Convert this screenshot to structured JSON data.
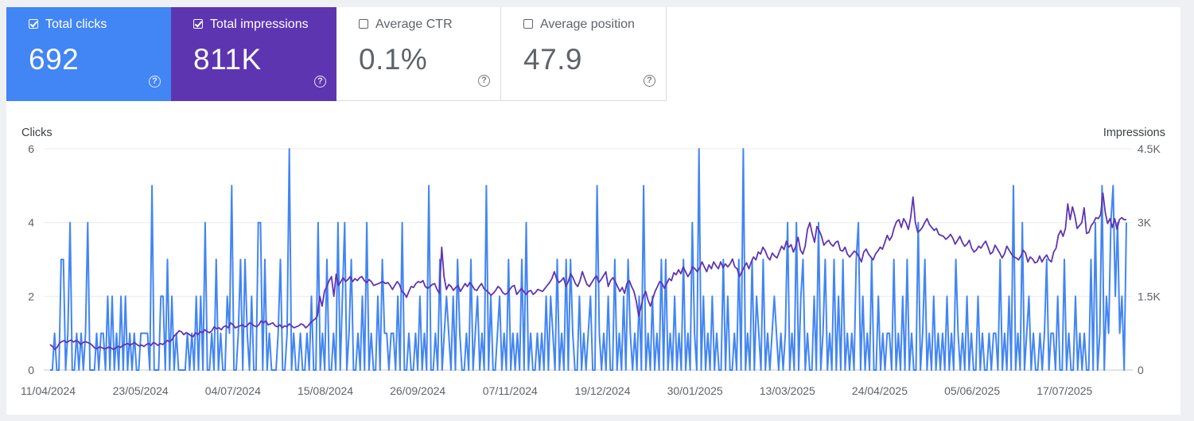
{
  "metrics": {
    "clicks": {
      "label": "Total clicks",
      "value": "692",
      "help_icon": "help-icon",
      "color": "#4285f4",
      "checked": true
    },
    "impressions": {
      "label": "Total impressions",
      "value": "811K",
      "help_icon": "help-icon",
      "color": "#5e35b1",
      "checked": true
    },
    "ctr": {
      "label": "Average CTR",
      "value": "0.1%",
      "help_icon": "help-icon",
      "checked": false
    },
    "position": {
      "label": "Average position",
      "value": "47.9",
      "help_icon": "help-icon",
      "checked": false
    }
  },
  "chart_data": {
    "type": "line",
    "ylabel_left": "Clicks",
    "ylabel_right": "Impressions",
    "yticks_left": [
      "0",
      "2",
      "4",
      "6"
    ],
    "yticks_right": [
      "0",
      "1.5K",
      "3K",
      "4.5K"
    ],
    "ylim_left": [
      0,
      6
    ],
    "ylim_right": [
      0,
      4500
    ],
    "grid": true,
    "x_tick_labels": [
      "11/04/2024",
      "23/05/2024",
      "04/07/2024",
      "15/08/2024",
      "26/09/2024",
      "07/11/2024",
      "19/12/2024",
      "30/01/2025",
      "13/03/2025",
      "24/04/2025",
      "05/06/2025",
      "17/07/2025"
    ],
    "x_range": [
      "09/04/2024",
      "17/08/2025"
    ],
    "series": [
      {
        "name": "Clicks",
        "axis": "left",
        "color": "#4285f4",
        "values": [
          0,
          0,
          1,
          0,
          0,
          3,
          3,
          0,
          1,
          4,
          0,
          0,
          1,
          0,
          1,
          0,
          1,
          4,
          0,
          0,
          0,
          1,
          0,
          1,
          1,
          0,
          2,
          0,
          2,
          0,
          1,
          0,
          2,
          0,
          2,
          0,
          1,
          0,
          1,
          0,
          0,
          1,
          1,
          1,
          1,
          0,
          5,
          0,
          0,
          0,
          2,
          2,
          0,
          3,
          0,
          2,
          0,
          1,
          0,
          0,
          0,
          0,
          1,
          0,
          1,
          0,
          2,
          0,
          2,
          0,
          4,
          0,
          0,
          1,
          0,
          3,
          0,
          1,
          0,
          0,
          2,
          1,
          5,
          0,
          0,
          1,
          3,
          0,
          3,
          1,
          0,
          2,
          0,
          0,
          4,
          4,
          0,
          3,
          0,
          1,
          0,
          0,
          0,
          1,
          3,
          0,
          0,
          1,
          6,
          0,
          1,
          0,
          0,
          1,
          0,
          0,
          1,
          0,
          2,
          0,
          0,
          4,
          0,
          1,
          0,
          3,
          0,
          0,
          1,
          0,
          4,
          0,
          2,
          4,
          0,
          1,
          3,
          0,
          0,
          1,
          0,
          2,
          0,
          4,
          0,
          1,
          0,
          0,
          2,
          0,
          3,
          1,
          1,
          0,
          1,
          1,
          0,
          2,
          0,
          4,
          0,
          0,
          1,
          0,
          0,
          1,
          0,
          2,
          0,
          1,
          0,
          5,
          0,
          0,
          1,
          0,
          3,
          0,
          1,
          2,
          1,
          0,
          2,
          0,
          3,
          1,
          0,
          0,
          1,
          0,
          3,
          0,
          1,
          2,
          0,
          1,
          0,
          5,
          0,
          2,
          0,
          0,
          1,
          2,
          0,
          1,
          0,
          3,
          0,
          1,
          0,
          1,
          0,
          3,
          0,
          4,
          0,
          1,
          0,
          0,
          1,
          0,
          1,
          0,
          2,
          0,
          2,
          1,
          0,
          3,
          0,
          1,
          0,
          3,
          0,
          3,
          1,
          0,
          0,
          2,
          0,
          1,
          0,
          1,
          2,
          0,
          0,
          5,
          1,
          0,
          1,
          0,
          2,
          0,
          0,
          3,
          0,
          1,
          0,
          2,
          0,
          3,
          1,
          0,
          1,
          0,
          2,
          0,
          5,
          0,
          1,
          0,
          2,
          0,
          1,
          0,
          3,
          0,
          3,
          0,
          1,
          0,
          2,
          0,
          1,
          0,
          3,
          0,
          1,
          0,
          4,
          1,
          0,
          6,
          0,
          2,
          0,
          1,
          0,
          2,
          0,
          1,
          0,
          0,
          3,
          0,
          2,
          0,
          0,
          1,
          0,
          3,
          0,
          6,
          0,
          1,
          0,
          3,
          0,
          2,
          1,
          0,
          3,
          0,
          1,
          0,
          1,
          2,
          1,
          0,
          1,
          0,
          1,
          4,
          0,
          1,
          0,
          4,
          0,
          2,
          3,
          0,
          1,
          0,
          0,
          2,
          0,
          4,
          0,
          1,
          3,
          0,
          1,
          0,
          3,
          0,
          2,
          0,
          3,
          0,
          1,
          0,
          1,
          0,
          3,
          4,
          0,
          2,
          0,
          1,
          0,
          3,
          0,
          0,
          2,
          0,
          1,
          0,
          1,
          1,
          0,
          3,
          0,
          1,
          0,
          2,
          0,
          3,
          0,
          1,
          0,
          0,
          4,
          0,
          1,
          3,
          0,
          1,
          0,
          2,
          0,
          1,
          0,
          1,
          0,
          2,
          0,
          1,
          0,
          3,
          1,
          0,
          1,
          0,
          2,
          0,
          1,
          0,
          0,
          2,
          0,
          1,
          0,
          0,
          1,
          0,
          1,
          1,
          0,
          3,
          0,
          1,
          0,
          2,
          0,
          5,
          0,
          1,
          0,
          4,
          0,
          1,
          2,
          0,
          1,
          0,
          0,
          1,
          0,
          1,
          3,
          0,
          1,
          1,
          0,
          2,
          0,
          0,
          3,
          0,
          1,
          0,
          0,
          2,
          0,
          1,
          0,
          1,
          0,
          0,
          3,
          0,
          4,
          0,
          1,
          5,
          0,
          2,
          1,
          4,
          5,
          2,
          4,
          1,
          2,
          0,
          4
        ]
      },
      {
        "name": "Impressions",
        "axis": "right",
        "color": "#5e35b1",
        "values": [
          520,
          480,
          420,
          460,
          550,
          580,
          600,
          560,
          590,
          610,
          570,
          600,
          580,
          520,
          560,
          580,
          560,
          540,
          500,
          450,
          430,
          470,
          460,
          430,
          440,
          470,
          450,
          420,
          450,
          480,
          460,
          500,
          520,
          540,
          510,
          530,
          560,
          520,
          490,
          510,
          480,
          520,
          540,
          500,
          560,
          540,
          500,
          540,
          520,
          560,
          600,
          580,
          620,
          700,
          740,
          800,
          780,
          720,
          760,
          740,
          700,
          680,
          760,
          720,
          780,
          760,
          820,
          780,
          760,
          800,
          880,
          840,
          860,
          820,
          880,
          900,
          860,
          960,
          920,
          860,
          880,
          900,
          920,
          880,
          900,
          960,
          940,
          900,
          880,
          920,
          1000,
          960,
          1000,
          920,
          940,
          960,
          900,
          880,
          920,
          860,
          900,
          880,
          940,
          900,
          860,
          880,
          900,
          940,
          920,
          860,
          900,
          960,
          1000,
          1040,
          1100,
          1500,
          1300,
          1600,
          1700,
          1820,
          1900,
          1500,
          1950,
          1720,
          1800,
          1880,
          1800,
          1840,
          1900,
          1800,
          1860,
          1820,
          1880,
          1900,
          1820,
          1780,
          1840,
          1800,
          1720,
          1740,
          1760,
          1780,
          1800,
          1760,
          1780,
          1720,
          1640,
          1720,
          1800,
          1740,
          1600,
          1560,
          1480,
          1600,
          1700,
          1680,
          1760,
          1800,
          1780,
          1820,
          1700,
          1660,
          1700,
          1740,
          1760,
          1640,
          1560,
          2500,
          1900,
          1640,
          1740,
          1700,
          1620,
          1680,
          1720,
          1600,
          1680,
          1760,
          1700,
          1780,
          1720,
          1640,
          1620,
          1700,
          1760,
          1660,
          1620,
          1580,
          1520,
          1560,
          1620,
          1700,
          1660,
          1580,
          1540,
          1560,
          1640,
          1700,
          1720,
          1540,
          1600,
          1660,
          1600,
          1540,
          1600,
          1620,
          1540,
          1580,
          1640,
          1620,
          1600,
          1660,
          1720,
          1780,
          1860,
          2000,
          1860,
          1780,
          1820,
          1880,
          1700,
          1800,
          1960,
          1880,
          1760,
          1700,
          1820,
          2000,
          1860,
          1740,
          1700,
          1780,
          1860,
          1920,
          1780,
          1840,
          1920,
          2000,
          1700,
          1820,
          1880,
          1800,
          1700,
          1600,
          1680,
          1560,
          1760,
          1820,
          1700,
          1600,
          1400,
          1100,
          1280,
          1500,
          1600,
          1420,
          1300,
          1450,
          1600,
          1700,
          1800,
          1760,
          1660,
          1760,
          1860,
          1820,
          1980,
          1940,
          2040,
          1960,
          2100,
          2000,
          1900,
          1980,
          2100,
          2060,
          2000,
          2080,
          2200,
          2100,
          2000,
          2140,
          2060,
          2200,
          2120,
          2060,
          2200,
          2080,
          2160,
          2100,
          2160,
          2260,
          2100,
          2060,
          1900,
          2000,
          2100,
          2180,
          2060,
          2200,
          2300,
          2240,
          2400,
          2360,
          2500,
          2420,
          2300,
          2240,
          2380,
          2320,
          2280,
          2400,
          2520,
          2450,
          2620,
          2500,
          2550,
          2400,
          2520,
          2700,
          2440,
          2360,
          2520,
          2860,
          3000,
          2780,
          2600,
          2920,
          2840,
          2720,
          2540,
          2600,
          2640,
          2560,
          2520,
          2600,
          2620,
          2440,
          2420,
          2500,
          2360,
          2300,
          2360,
          2420,
          2380,
          2300,
          2200,
          2400,
          2460,
          2360,
          2300,
          2240,
          2360,
          2420,
          2500,
          2460,
          2600,
          2740,
          2640,
          2720,
          2900,
          3020,
          3060,
          2900,
          3080,
          3000,
          2860,
          3100,
          3520,
          3000,
          2800,
          2840,
          2900,
          3000,
          3080,
          2960,
          2900,
          2840,
          2880,
          2760,
          2740,
          2720,
          2660,
          2700,
          2760,
          2680,
          2560,
          2640,
          2720,
          2600,
          2520,
          2560,
          2640,
          2480,
          2400,
          2440,
          2520,
          2480,
          2560,
          2620,
          2500,
          2360,
          2400,
          2540,
          2460,
          2380,
          2280,
          2360,
          2520,
          2440,
          2360,
          2300,
          2280,
          2240,
          2320,
          2440,
          2380,
          2200,
          2300,
          2260,
          2180,
          2200,
          2320,
          2200,
          2280,
          2340,
          2240,
          2200,
          2400,
          2480,
          2740,
          2840,
          2720,
          2880,
          3380,
          3060,
          3320,
          3140,
          2880,
          2940,
          3000,
          3300,
          2780,
          2800,
          2940,
          3000,
          3100,
          3080,
          3160,
          3600,
          3200,
          2980,
          3080,
          2900,
          3080,
          2860,
          3060,
          3100,
          3060,
          3060
        ]
      }
    ]
  }
}
